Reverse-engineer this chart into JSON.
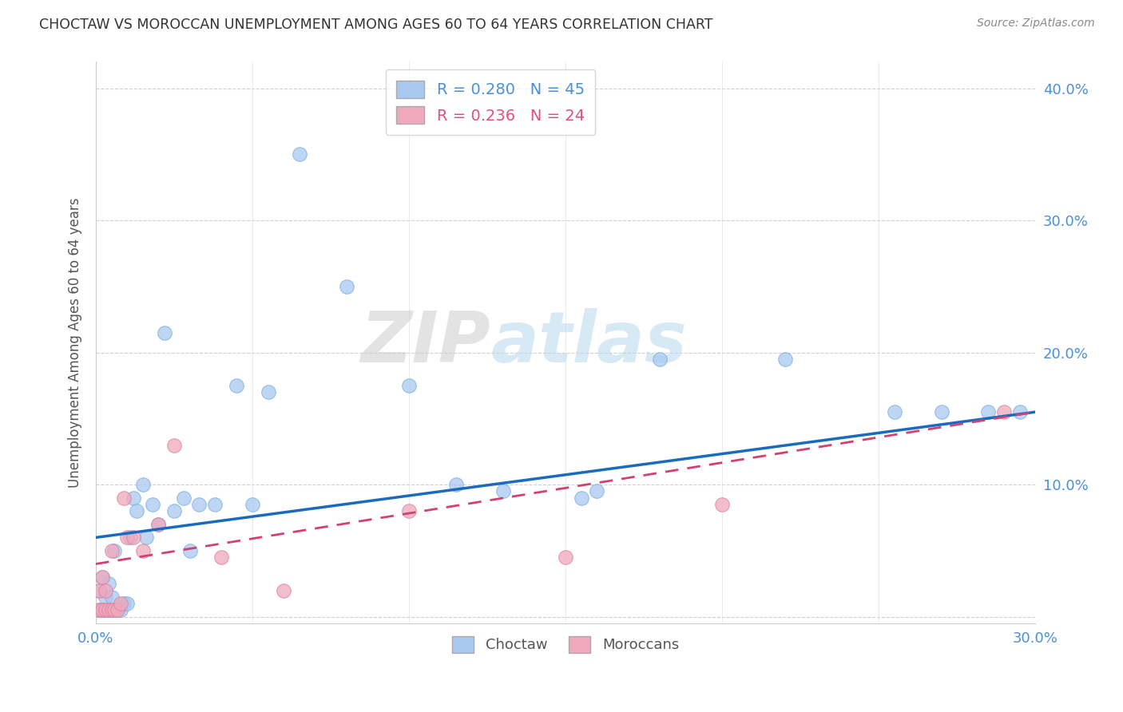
{
  "title": "CHOCTAW VS MOROCCAN UNEMPLOYMENT AMONG AGES 60 TO 64 YEARS CORRELATION CHART",
  "source": "Source: ZipAtlas.com",
  "ylabel": "Unemployment Among Ages 60 to 64 years",
  "xlim": [
    0.0,
    0.3
  ],
  "ylim": [
    -0.005,
    0.42
  ],
  "xticks": [
    0.0,
    0.05,
    0.1,
    0.15,
    0.2,
    0.25,
    0.3
  ],
  "yticks": [
    0.0,
    0.1,
    0.2,
    0.3,
    0.4
  ],
  "xtick_labels": [
    "0.0%",
    "",
    "",
    "",
    "",
    "",
    "30.0%"
  ],
  "ytick_labels": [
    "",
    "10.0%",
    "20.0%",
    "30.0%",
    "40.0%"
  ],
  "choctaw_r": 0.28,
  "choctaw_n": 45,
  "moroccan_r": 0.236,
  "moroccan_n": 24,
  "choctaw_color": "#a8c8f0",
  "choctaw_line_color": "#1a6bbf",
  "moroccan_color": "#f0a8bc",
  "moroccan_line_color": "#d44070",
  "watermark_zip": "ZIP",
  "watermark_atlas": "atlas",
  "choctaw_x": [
    0.001,
    0.001,
    0.002,
    0.002,
    0.003,
    0.003,
    0.004,
    0.004,
    0.005,
    0.005,
    0.006,
    0.006,
    0.007,
    0.008,
    0.009,
    0.01,
    0.011,
    0.012,
    0.013,
    0.015,
    0.016,
    0.018,
    0.02,
    0.022,
    0.025,
    0.028,
    0.03,
    0.033,
    0.038,
    0.045,
    0.05,
    0.055,
    0.065,
    0.08,
    0.1,
    0.115,
    0.13,
    0.155,
    0.16,
    0.18,
    0.22,
    0.255,
    0.27,
    0.285,
    0.295
  ],
  "choctaw_y": [
    0.005,
    0.02,
    0.005,
    0.03,
    0.005,
    0.015,
    0.005,
    0.025,
    0.005,
    0.015,
    0.005,
    0.05,
    0.005,
    0.005,
    0.01,
    0.01,
    0.06,
    0.09,
    0.08,
    0.1,
    0.06,
    0.085,
    0.07,
    0.215,
    0.08,
    0.09,
    0.05,
    0.085,
    0.085,
    0.175,
    0.085,
    0.17,
    0.35,
    0.25,
    0.175,
    0.1,
    0.095,
    0.09,
    0.095,
    0.195,
    0.195,
    0.155,
    0.155,
    0.155,
    0.155
  ],
  "moroccan_x": [
    0.001,
    0.001,
    0.002,
    0.002,
    0.003,
    0.003,
    0.004,
    0.005,
    0.005,
    0.006,
    0.007,
    0.008,
    0.009,
    0.01,
    0.012,
    0.015,
    0.02,
    0.025,
    0.04,
    0.06,
    0.1,
    0.15,
    0.2,
    0.29
  ],
  "moroccan_y": [
    0.005,
    0.02,
    0.005,
    0.03,
    0.005,
    0.02,
    0.005,
    0.005,
    0.05,
    0.005,
    0.005,
    0.01,
    0.09,
    0.06,
    0.06,
    0.05,
    0.07,
    0.13,
    0.045,
    0.02,
    0.08,
    0.045,
    0.085,
    0.155
  ],
  "choctaw_line_x0": 0.0,
  "choctaw_line_y0": 0.06,
  "choctaw_line_x1": 0.3,
  "choctaw_line_y1": 0.155,
  "moroccan_line_x0": 0.0,
  "moroccan_line_y0": 0.04,
  "moroccan_line_x1": 0.3,
  "moroccan_line_y1": 0.155
}
